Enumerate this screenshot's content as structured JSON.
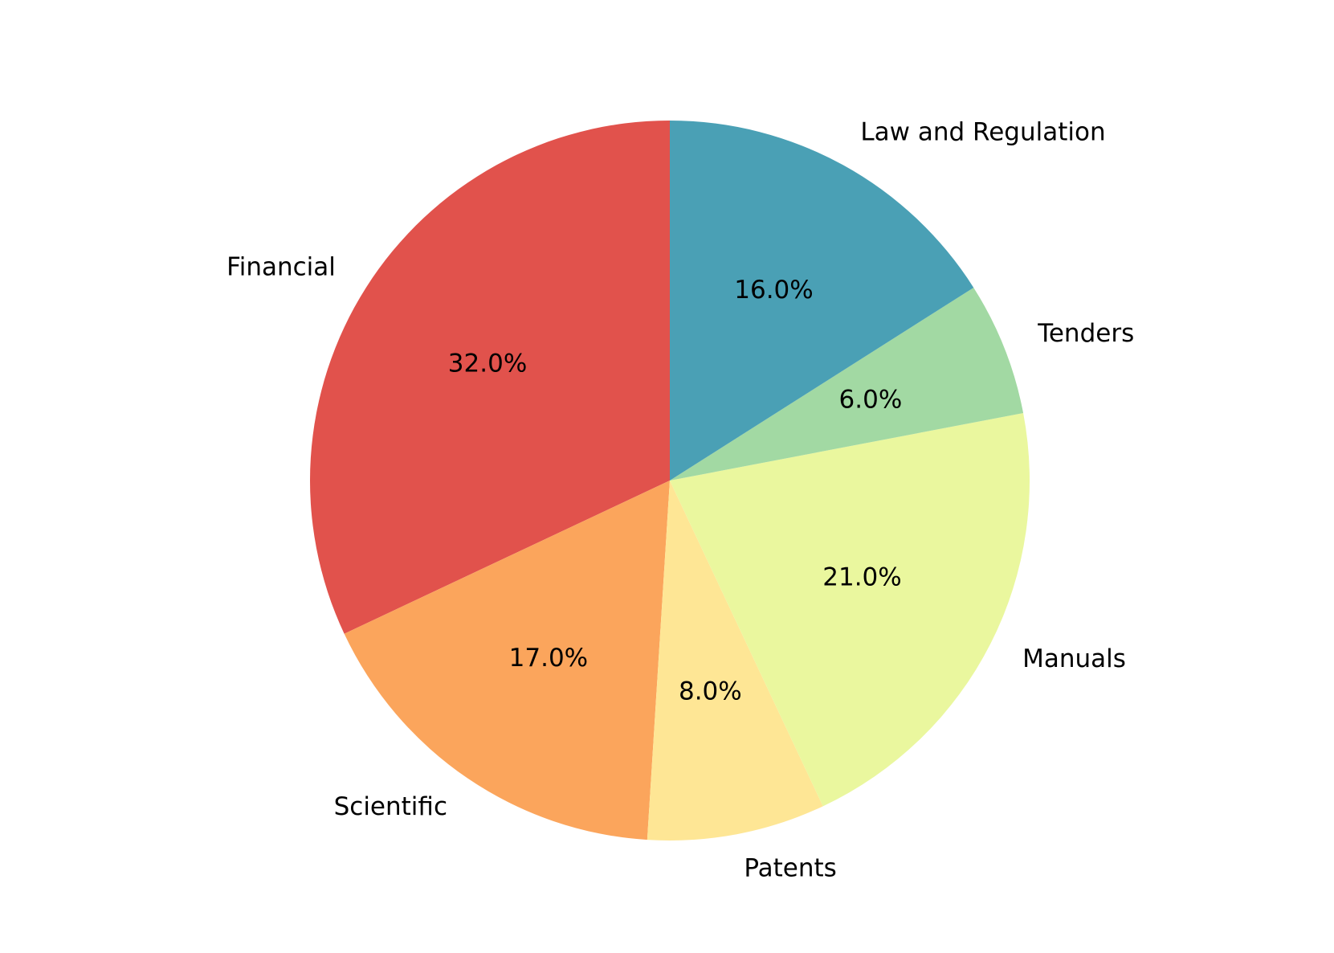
{
  "chart_data": {
    "type": "pie",
    "categories": [
      "Financial",
      "Scientific",
      "Patents",
      "Manuals",
      "Tenders",
      "Law and Regulation"
    ],
    "values": [
      32,
      17,
      8,
      21,
      6,
      16
    ],
    "value_labels": [
      "32.0%",
      "17.0%",
      "8.0%",
      "21.0%",
      "6.0%",
      "16.0%"
    ],
    "colors": [
      "#e1524c",
      "#fba55c",
      "#fee695",
      "#eaf79e",
      "#a2d9a3",
      "#4aa0b5"
    ]
  }
}
